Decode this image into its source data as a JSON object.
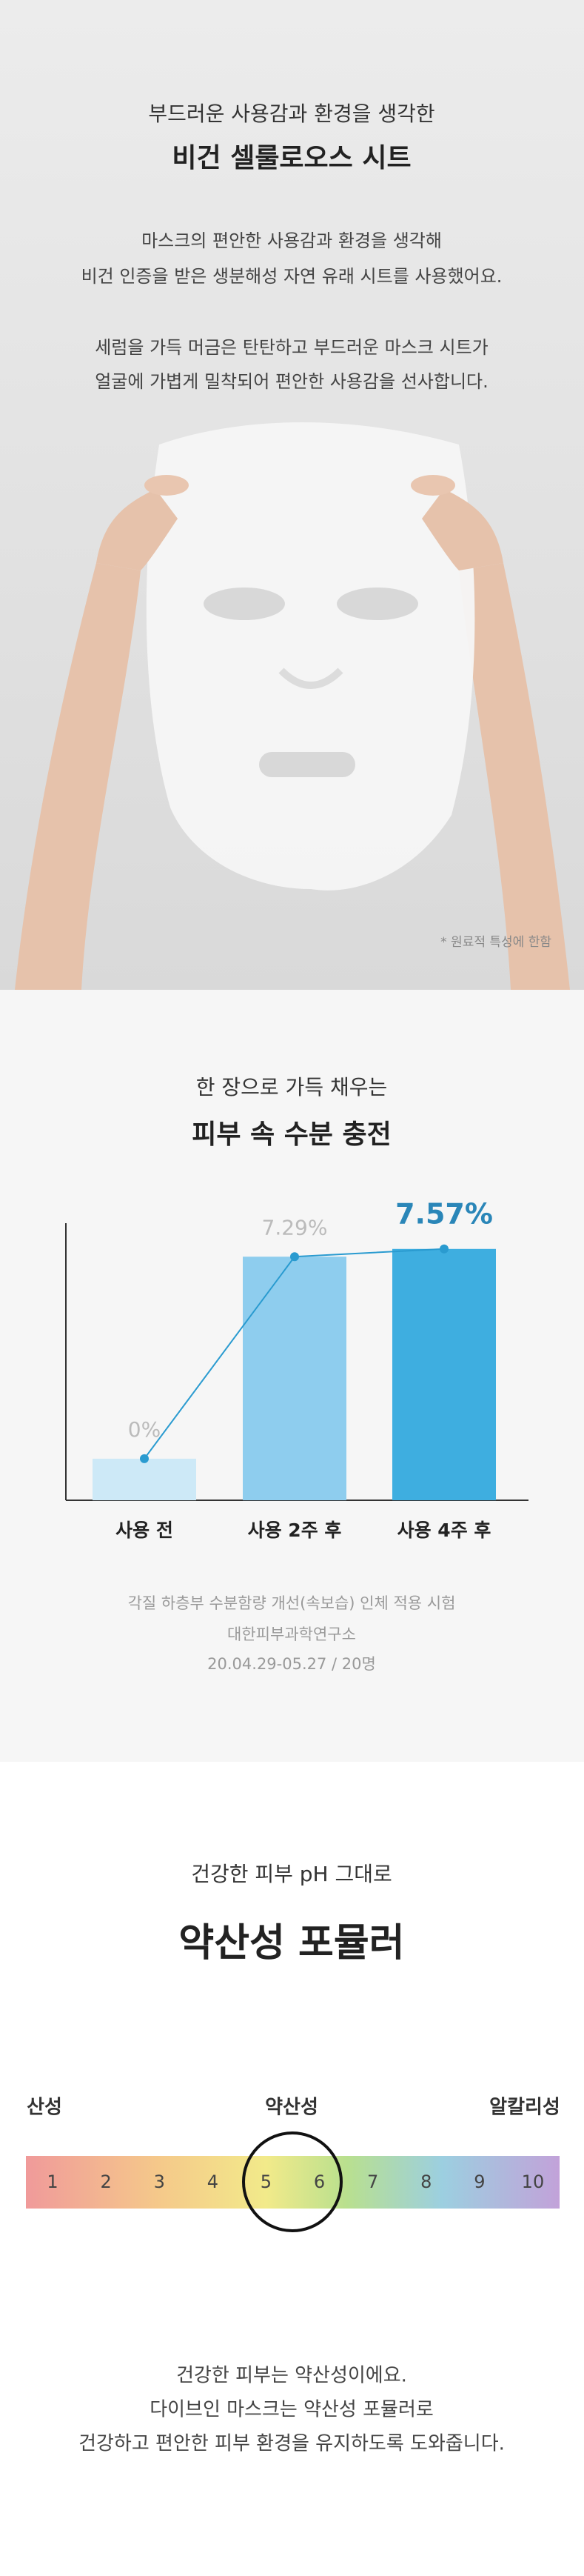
{
  "top": {
    "subtitle": "부드러운 사용감과 환경을 생각한",
    "title": "비건 셀룰로오스 시트",
    "paragraphs": [
      [
        "마스크의 편안한 사용감과 환경을 생각해",
        "비건 인증을 받은 생분해성 자연 유래 시트를 사용했어요."
      ],
      [
        "세럼을 가득 머금은 탄탄하고 부드러운 마스크 시트가",
        "얼굴에 가볍게 밀착되어 편안한 사용감을 선사합니다."
      ]
    ],
    "note": "* 원료적 특성에 한함"
  },
  "chart_data": {
    "type": "bar",
    "subtitle": "한 장으로 가득 채우는",
    "title": "피부 속 수분 충전",
    "categories": [
      "사용 전",
      "사용 2주 후",
      "사용 4주 후"
    ],
    "values": [
      0,
      7.29,
      7.57
    ],
    "value_labels": [
      "0%",
      "7.29%",
      "7.57%"
    ],
    "colors": [
      "#cde9f7",
      "#8ecdee",
      "#3eaee0"
    ],
    "line_color": "#2a9bd0",
    "ylim": [
      -1.5,
      8.5
    ],
    "notes": [
      "각질 하층부 수분함량 개선(속보습) 인체 적용 시험",
      "대한피부과학연구소",
      "20.04.29-05.27 / 20명"
    ]
  },
  "ph": {
    "subtitle": "건강한 피부 pH 그대로",
    "title": "약산성 포뮬러",
    "labels": [
      "산성",
      "약산성",
      "알칼리성"
    ],
    "scale": [
      1,
      2,
      3,
      4,
      5,
      6,
      7,
      8,
      9,
      10
    ],
    "text": [
      "건강한 피부는 약산성이에요.",
      "다이브인 마스크는 약산성 포뮬러로",
      "건강하고 편안한 피부 환경을 유지하도록 도와줍니다."
    ]
  }
}
